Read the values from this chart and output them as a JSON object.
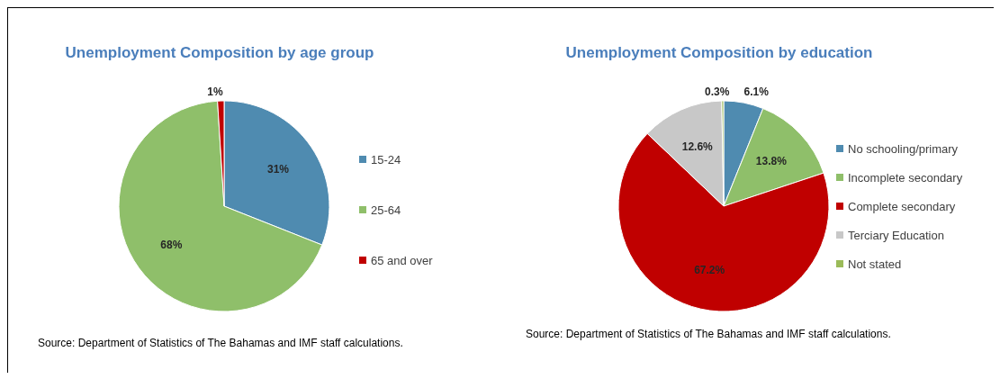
{
  "chart_data": [
    {
      "type": "pie",
      "title": "Unemployment Composition by age group",
      "categories": [
        "15-24",
        "25-64",
        "65 and over"
      ],
      "values": [
        31,
        68,
        1
      ],
      "value_labels": [
        "31%",
        "68%",
        "1%"
      ],
      "colors": [
        "#4f8bb0",
        "#8fbf6a",
        "#c00000"
      ],
      "legend": "right",
      "annotations": [
        "Source: Department of Statistics of The Bahamas and IMF staff calculations."
      ]
    },
    {
      "type": "pie",
      "title": "Unemployment Composition by education",
      "categories": [
        "No schooling/primary",
        "Incomplete secondary",
        "Complete secondary",
        "Terciary Education",
        "Not stated"
      ],
      "values": [
        6.1,
        13.8,
        67.2,
        12.6,
        0.3
      ],
      "value_labels": [
        "6.1%",
        "13.8%",
        "67.2%",
        "12.6%",
        "0.3%"
      ],
      "colors": [
        "#4f8bb0",
        "#8fbf6a",
        "#c00000",
        "#c8c8c8",
        "#9bbb59"
      ],
      "legend": "right",
      "annotations": [
        "Source: Department of Statistics of The Bahamas and IMF staff calculations."
      ]
    }
  ]
}
